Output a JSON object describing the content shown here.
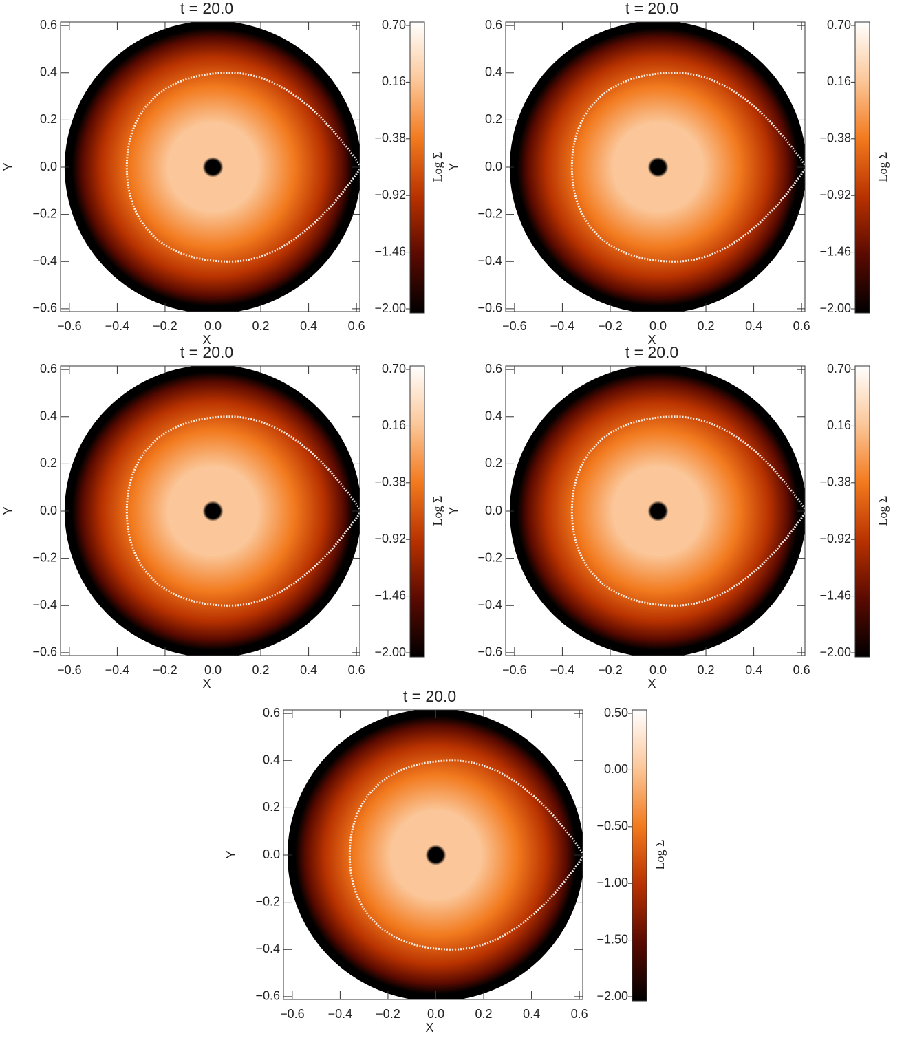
{
  "chart_data": [
    {
      "type": "heatmap",
      "title": "t = 20.0",
      "xlabel": "X",
      "ylabel": "Y",
      "xlim": [
        -0.637,
        0.614
      ],
      "ylim": [
        -0.612,
        0.615
      ],
      "xticks": [
        {
          "value": -0.6,
          "label": "−0.6"
        },
        {
          "value": -0.4,
          "label": "−0.4"
        },
        {
          "value": -0.2,
          "label": "−0.2"
        },
        {
          "value": 0,
          "label": "0.0"
        },
        0.2,
        0.4,
        0.6
      ],
      "yticks": [
        {
          "value": -0.6,
          "label": "−0.6"
        },
        {
          "value": -0.4,
          "label": "−0.4"
        },
        {
          "value": -0.2,
          "label": "−0.2"
        },
        {
          "value": 0,
          "label": "0.0"
        },
        0.2,
        0.4,
        0.6
      ],
      "colorbar": {
        "label": "Log Σ",
        "lim": [
          -2.0,
          0.7
        ],
        "ticks": [
          {
            "value": -2,
            "label": "−2.00"
          },
          {
            "value": -1.46,
            "label": "−1.46"
          },
          {
            "value": -0.92,
            "label": "−0.92"
          },
          {
            "value": -0.38,
            "label": "−0.38"
          },
          0.16,
          {
            "value": 0.7,
            "label": "0.70"
          }
        ]
      },
      "colormap": [
        "#000000",
        "#5a0a00",
        "#b83200",
        "#f27a1e",
        "#fbc79a",
        "#ffffff"
      ]
    },
    {
      "type": "heatmap",
      "title": "t = 20.0",
      "xlabel": "X",
      "ylabel": "Y",
      "xlim": [
        -0.637,
        0.614
      ],
      "ylim": [
        -0.612,
        0.615
      ],
      "xticks": [
        {
          "value": -0.6,
          "label": "−0.6"
        },
        {
          "value": -0.4,
          "label": "−0.4"
        },
        {
          "value": -0.2,
          "label": "−0.2"
        },
        {
          "value": 0,
          "label": "0.0"
        },
        0.2,
        0.4,
        0.6
      ],
      "yticks": [
        {
          "value": -0.6,
          "label": "−0.6"
        },
        {
          "value": -0.4,
          "label": "−0.4"
        },
        {
          "value": -0.2,
          "label": "−0.2"
        },
        {
          "value": 0,
          "label": "0.0"
        },
        0.2,
        0.4,
        0.6
      ],
      "colorbar": {
        "label": "Log Σ",
        "lim": [
          -2.0,
          0.7
        ],
        "ticks": [
          {
            "value": -2,
            "label": "−2.00"
          },
          {
            "value": -1.46,
            "label": "−1.46"
          },
          {
            "value": -0.92,
            "label": "−0.92"
          },
          {
            "value": -0.38,
            "label": "−0.38"
          },
          0.16,
          {
            "value": 0.7,
            "label": "0.70"
          }
        ]
      },
      "colormap": [
        "#000000",
        "#5a0a00",
        "#b83200",
        "#f27a1e",
        "#fbc79a",
        "#ffffff"
      ]
    },
    {
      "type": "heatmap",
      "title": "t = 20.0",
      "xlabel": "X",
      "ylabel": "Y",
      "xlim": [
        -0.637,
        0.614
      ],
      "ylim": [
        -0.612,
        0.615
      ],
      "xticks": [
        {
          "value": -0.6,
          "label": "−0.6"
        },
        {
          "value": -0.4,
          "label": "−0.4"
        },
        {
          "value": -0.2,
          "label": "−0.2"
        },
        {
          "value": 0,
          "label": "0.0"
        },
        0.2,
        0.4,
        0.6
      ],
      "yticks": [
        {
          "value": -0.6,
          "label": "−0.6"
        },
        {
          "value": -0.4,
          "label": "−0.4"
        },
        {
          "value": -0.2,
          "label": "−0.2"
        },
        {
          "value": 0,
          "label": "0.0"
        },
        0.2,
        0.4,
        0.6
      ],
      "colorbar": {
        "label": "Log Σ",
        "lim": [
          -2.0,
          0.7
        ],
        "ticks": [
          {
            "value": -2,
            "label": "−2.00"
          },
          {
            "value": -1.46,
            "label": "−1.46"
          },
          {
            "value": -0.92,
            "label": "−0.92"
          },
          {
            "value": -0.38,
            "label": "−0.38"
          },
          0.16,
          {
            "value": 0.7,
            "label": "0.70"
          }
        ]
      },
      "colormap": [
        "#000000",
        "#5a0a00",
        "#b83200",
        "#f27a1e",
        "#fbc79a",
        "#ffffff"
      ]
    },
    {
      "type": "heatmap",
      "title": "t = 20.0",
      "xlabel": "X",
      "ylabel": "Y",
      "xlim": [
        -0.637,
        0.614
      ],
      "ylim": [
        -0.612,
        0.615
      ],
      "xticks": [
        {
          "value": -0.6,
          "label": "−0.6"
        },
        {
          "value": -0.4,
          "label": "−0.4"
        },
        {
          "value": -0.2,
          "label": "−0.2"
        },
        {
          "value": 0,
          "label": "0.0"
        },
        0.2,
        0.4,
        0.6
      ],
      "yticks": [
        {
          "value": -0.6,
          "label": "−0.6"
        },
        {
          "value": -0.4,
          "label": "−0.4"
        },
        {
          "value": -0.2,
          "label": "−0.2"
        },
        {
          "value": 0,
          "label": "0.0"
        },
        0.2,
        0.4,
        0.6
      ],
      "colorbar": {
        "label": "Log Σ",
        "lim": [
          -2.0,
          0.7
        ],
        "ticks": [
          {
            "value": -2,
            "label": "−2.00"
          },
          {
            "value": -1.46,
            "label": "−1.46"
          },
          {
            "value": -0.92,
            "label": "−0.92"
          },
          {
            "value": -0.38,
            "label": "−0.38"
          },
          0.16,
          {
            "value": 0.7,
            "label": "0.70"
          }
        ]
      },
      "colormap": [
        "#000000",
        "#5a0a00",
        "#b83200",
        "#f27a1e",
        "#fbc79a",
        "#ffffff"
      ]
    },
    {
      "type": "heatmap",
      "title": "t = 20.0",
      "xlabel": "X",
      "ylabel": "Y",
      "xlim": [
        -0.637,
        0.614
      ],
      "ylim": [
        -0.612,
        0.615
      ],
      "xticks": [
        {
          "value": -0.6,
          "label": "−0.6"
        },
        {
          "value": -0.4,
          "label": "−0.4"
        },
        {
          "value": -0.2,
          "label": "−0.2"
        },
        {
          "value": 0,
          "label": "0.0"
        },
        0.2,
        0.4,
        0.6
      ],
      "yticks": [
        {
          "value": -0.6,
          "label": "−0.6"
        },
        {
          "value": -0.4,
          "label": "−0.4"
        },
        {
          "value": -0.2,
          "label": "−0.2"
        },
        {
          "value": 0,
          "label": "0.0"
        },
        0.2,
        0.4,
        0.6
      ],
      "colorbar": {
        "label": "Log Σ",
        "lim": [
          -2.0,
          0.5
        ],
        "ticks": [
          {
            "value": -2,
            "label": "−2.00"
          },
          {
            "value": -1.5,
            "label": "−1.50"
          },
          {
            "value": -1,
            "label": "−1.00"
          },
          {
            "value": -0.5,
            "label": "−0.50"
          },
          {
            "value": 0,
            "label": "0.00"
          },
          {
            "value": 0.5,
            "label": "0.50"
          }
        ]
      },
      "colormap": [
        "#000000",
        "#5a0a00",
        "#b83200",
        "#f27a1e",
        "#fbc79a",
        "#ffffff"
      ]
    }
  ]
}
